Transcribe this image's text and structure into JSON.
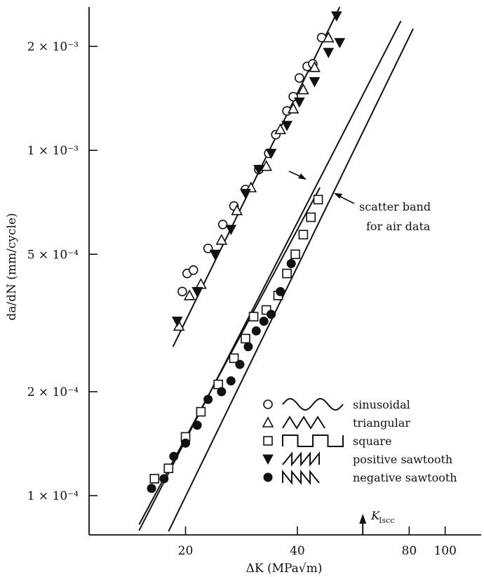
{
  "chart_data": {
    "type": "scatter",
    "title": "",
    "xlabel": "ΔK (MPa√m)",
    "ylabel": "da/dN (mm/cycle)",
    "x_scale": "log",
    "y_scale": "log",
    "xlim": [
      11,
      125
    ],
    "ylim": [
      7.7e-05,
      0.0026
    ],
    "x_ticks": [
      {
        "value": 20,
        "label": "20"
      },
      {
        "value": 40,
        "label": "40"
      },
      {
        "value": 80,
        "label": "80"
      },
      {
        "value": 100,
        "label": "100"
      }
    ],
    "y_ticks": [
      {
        "value": 0.0001,
        "label": "1 × 10⁻⁴"
      },
      {
        "value": 0.0002,
        "label": "2 × 10⁻⁴"
      },
      {
        "value": 0.0005,
        "label": "5 × 10⁻⁴"
      },
      {
        "value": 0.001,
        "label": "1 × 10⁻³"
      },
      {
        "value": 0.002,
        "label": "2 × 10⁻³"
      }
    ],
    "series": [
      {
        "name": "sinusoidal",
        "marker": "circle-open",
        "points": [
          [
            19.6,
            0.00039
          ],
          [
            20.2,
            0.00044
          ],
          [
            21.0,
            0.00045
          ],
          [
            23.0,
            0.00052
          ],
          [
            25.2,
            0.00061
          ],
          [
            27.0,
            0.00069
          ],
          [
            29.0,
            0.00077
          ],
          [
            31.5,
            0.00088
          ],
          [
            33.5,
            0.00098
          ],
          [
            35.0,
            0.00111
          ],
          [
            37.5,
            0.0013
          ],
          [
            39.0,
            0.00143
          ],
          [
            40.5,
            0.00162
          ],
          [
            42.5,
            0.00175
          ],
          [
            44.0,
            0.00178
          ],
          [
            46.5,
            0.00212
          ]
        ]
      },
      {
        "name": "triangular",
        "marker": "triangle-open",
        "points": [
          [
            19.2,
            0.00031
          ],
          [
            20.5,
            0.00038
          ],
          [
            22.0,
            0.00041
          ],
          [
            25.0,
            0.00055
          ],
          [
            27.5,
            0.00067
          ],
          [
            30.0,
            0.00078
          ],
          [
            33.0,
            0.0009
          ],
          [
            36.0,
            0.00115
          ],
          [
            39.0,
            0.00132
          ],
          [
            41.5,
            0.0015
          ],
          [
            44.5,
            0.00174
          ],
          [
            48.5,
            0.00212
          ]
        ]
      },
      {
        "name": "square",
        "marker": "square-open",
        "points": [
          [
            16.5,
            0.000112
          ],
          [
            18.0,
            0.00012
          ],
          [
            20.0,
            0.000148
          ],
          [
            22.0,
            0.000175
          ],
          [
            24.5,
            0.00021
          ],
          [
            27.0,
            0.00025
          ],
          [
            29.0,
            0.000285
          ],
          [
            30.5,
            0.00033
          ],
          [
            33.0,
            0.000345
          ],
          [
            35.5,
            0.00038
          ],
          [
            37.5,
            0.00044
          ],
          [
            39.5,
            0.0005
          ],
          [
            41.5,
            0.00057
          ],
          [
            43.5,
            0.00064
          ],
          [
            45.5,
            0.00072
          ]
        ]
      },
      {
        "name": "positive sawtooth",
        "marker": "triangle-down-filled",
        "points": [
          [
            19.0,
            0.00032
          ],
          [
            21.5,
            0.00039
          ],
          [
            24.0,
            0.0005
          ],
          [
            26.5,
            0.00059
          ],
          [
            29.0,
            0.00075
          ],
          [
            31.5,
            0.00088
          ],
          [
            34.0,
            0.00098
          ],
          [
            37.5,
            0.00118
          ],
          [
            40.5,
            0.00138
          ],
          [
            44.5,
            0.00158
          ],
          [
            48.5,
            0.00192
          ],
          [
            51.0,
            0.00245
          ],
          [
            52.0,
            0.00205
          ]
        ]
      },
      {
        "name": "negative sawtooth",
        "marker": "circle-filled",
        "points": [
          [
            16.2,
            0.000105
          ],
          [
            17.5,
            0.000112
          ],
          [
            18.6,
            0.00013
          ],
          [
            20.0,
            0.000142
          ],
          [
            21.5,
            0.00016
          ],
          [
            23.0,
            0.00019
          ],
          [
            25.0,
            0.0002
          ],
          [
            26.5,
            0.000215
          ],
          [
            28.0,
            0.00024
          ],
          [
            29.5,
            0.00027
          ],
          [
            31.0,
            0.0003
          ],
          [
            32.5,
            0.00032
          ],
          [
            34.0,
            0.000335
          ],
          [
            36.0,
            0.00039
          ],
          [
            38.5,
            0.00047
          ]
        ]
      }
    ],
    "fit_lines": [
      {
        "x1": 18.5,
        "y1": 0.00027,
        "x2": 52,
        "y2": 0.0026
      },
      {
        "x1": 15.0,
        "y1": 8.25e-05,
        "x2": 46,
        "y2": 0.00078
      }
    ],
    "scatter_band": [
      {
        "x1": 15.0,
        "y1": 7.93e-05,
        "x2": 76,
        "y2": 0.00237
      },
      {
        "x1": 18.0,
        "y1": 7.88e-05,
        "x2": 82,
        "y2": 0.00225
      }
    ],
    "annotations": [
      {
        "text": "scatter band",
        "line2": "for air data"
      },
      {
        "text": "K",
        "subscript": "Iscc",
        "x": 60
      }
    ],
    "legend": {
      "placement": "bottom-right",
      "entries": [
        {
          "label": "sinusoidal",
          "marker": "circle-open",
          "waveform": "sine-wave-icon"
        },
        {
          "label": "triangular",
          "marker": "triangle-open",
          "waveform": "triangle-wave-icon"
        },
        {
          "label": "square",
          "marker": "square-open",
          "waveform": "square-wave-icon"
        },
        {
          "label": "positive sawtooth",
          "marker": "triangle-down-filled",
          "waveform": "positive-sawtooth-icon"
        },
        {
          "label": "negative sawtooth",
          "marker": "circle-filled",
          "waveform": "negative-sawtooth-icon"
        }
      ]
    },
    "grid": false
  }
}
